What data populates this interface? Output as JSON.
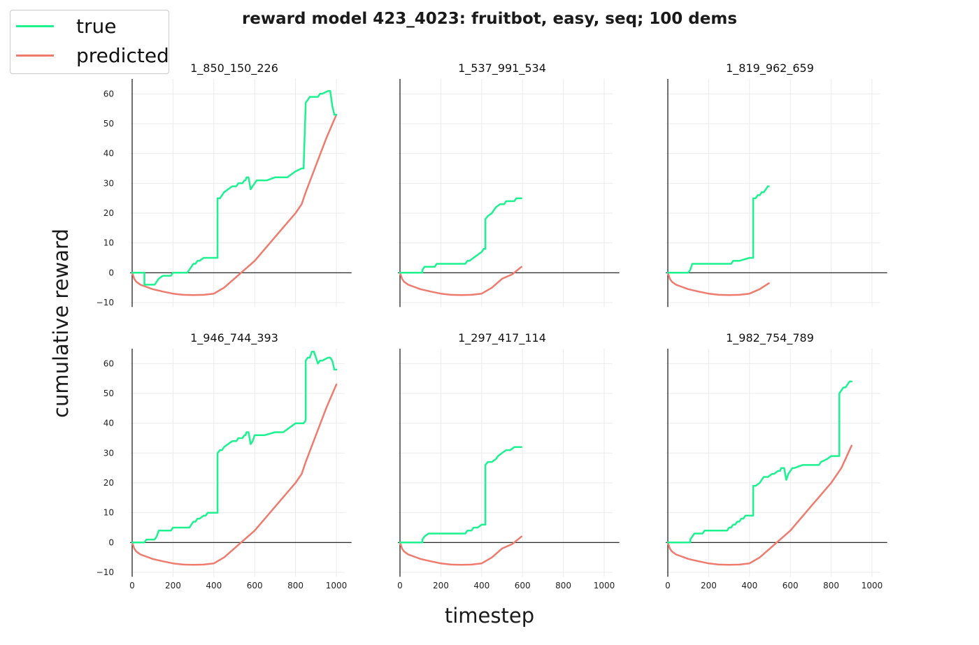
{
  "title": "reward model 423_4023: fruitbot, easy, seq; 100 dems",
  "xlabel": "timestep",
  "ylabel": "cumulative reward",
  "legend": [
    {
      "label": "true",
      "color": "#1cf28f"
    },
    {
      "label": "predicted",
      "color": "#ef7b6e"
    }
  ],
  "chart_data": {
    "type": "line",
    "xlim": [
      0,
      1000
    ],
    "ylim": [
      -10,
      65
    ],
    "xticks": [
      0,
      200,
      400,
      600,
      800,
      1000
    ],
    "yticks": [
      -10,
      0,
      10,
      20,
      30,
      40,
      50,
      60
    ],
    "grid": true,
    "legend_position": "upper-left",
    "panels": [
      {
        "title": "1_850_150_226",
        "series": [
          {
            "name": "true",
            "x": [
              0,
              60,
              60,
              110,
              130,
              150,
              190,
              200,
              270,
              280,
              290,
              300,
              310,
              320,
              330,
              350,
              360,
              370,
              380,
              400,
              418,
              418,
              430,
              440,
              450,
              470,
              490,
              510,
              520,
              530,
              540,
              550,
              555,
              560,
              570,
              580,
              590,
              600,
              610,
              620,
              660,
              700,
              740,
              760,
              800,
              830,
              840,
              840,
              850,
              860,
              870,
              890,
              910,
              920,
              930,
              960,
              970,
              980,
              990,
              995,
              1000
            ],
            "y": [
              0,
              0,
              -4,
              -4,
              -2,
              -1,
              -1,
              0,
              0,
              1,
              2,
              3,
              3,
              4,
              4,
              5,
              5,
              5,
              5,
              5,
              5,
              25,
              25,
              26,
              27,
              28,
              29,
              29,
              30,
              30,
              30,
              31,
              31,
              32,
              32,
              28,
              29,
              30,
              31,
              31,
              31,
              32,
              32,
              32,
              34,
              35,
              35,
              36,
              57,
              58,
              59,
              59,
              59,
              60,
              60,
              61,
              61,
              56,
              53,
              53,
              53
            ]
          },
          {
            "name": "predicted",
            "x": [
              0,
              10,
              20,
              40,
              60,
              100,
              150,
              200,
              250,
              300,
              350,
              400,
              450,
              500,
              550,
              600,
              650,
              700,
              750,
              800,
              830,
              850,
              900,
              950,
              1000
            ],
            "y": [
              0,
              -2,
              -3,
              -4,
              -4.5,
              -5.5,
              -6.3,
              -7,
              -7.4,
              -7.5,
              -7.4,
              -7,
              -5,
              -2,
              1,
              4,
              8,
              12,
              16,
              20,
              23,
              27,
              36,
              45,
              53
            ]
          }
        ]
      },
      {
        "title": "1_537_991_534",
        "series": [
          {
            "name": "true",
            "x": [
              0,
              110,
              110,
              120,
              140,
              170,
              180,
              250,
              300,
              320,
              330,
              340,
              360,
              380,
              400,
              410,
              418,
              418,
              430,
              450,
              460,
              470,
              490,
              510,
              520,
              540,
              560,
              570,
              580,
              590,
              595
            ],
            "y": [
              0,
              0,
              1,
              2,
              2,
              2,
              3,
              3,
              3,
              3,
              4,
              4,
              5,
              6,
              7,
              8,
              8,
              18,
              19,
              20,
              21,
              22,
              23,
              23,
              24,
              24,
              24,
              25,
              25,
              25,
              25
            ]
          },
          {
            "name": "predicted",
            "x": [
              0,
              10,
              20,
              40,
              60,
              100,
              150,
              200,
              250,
              300,
              350,
              400,
              450,
              500,
              550,
              595
            ],
            "y": [
              0,
              -2,
              -3,
              -4,
              -4.5,
              -5.5,
              -6.3,
              -7,
              -7.4,
              -7.5,
              -7.4,
              -7,
              -5,
              -2,
              -0.5,
              2
            ]
          }
        ]
      },
      {
        "title": "1_819_962_659",
        "series": [
          {
            "name": "true",
            "x": [
              0,
              100,
              110,
              120,
              160,
              250,
              300,
              310,
              320,
              350,
              400,
              418,
              418,
              430,
              440,
              450,
              460,
              470,
              480,
              490,
              495
            ],
            "y": [
              0,
              0,
              1,
              3,
              3,
              3,
              3,
              3,
              4,
              4,
              5,
              5,
              25,
              25,
              26,
              26,
              27,
              27,
              28,
              29,
              29
            ]
          },
          {
            "name": "predicted",
            "x": [
              0,
              10,
              20,
              40,
              60,
              100,
              150,
              200,
              250,
              300,
              350,
              400,
              450,
              495
            ],
            "y": [
              0,
              -2,
              -3,
              -4,
              -4.5,
              -5.5,
              -6.3,
              -7,
              -7.4,
              -7.5,
              -7.4,
              -7,
              -5.5,
              -3.5
            ]
          }
        ]
      },
      {
        "title": "1_946_744_393",
        "series": [
          {
            "name": "true",
            "x": [
              0,
              60,
              70,
              110,
              120,
              130,
              190,
              200,
              280,
              290,
              300,
              310,
              320,
              330,
              350,
              360,
              370,
              380,
              390,
              400,
              418,
              418,
              430,
              440,
              450,
              470,
              490,
              510,
              520,
              540,
              550,
              555,
              560,
              570,
              580,
              590,
              600,
              650,
              700,
              740,
              760,
              800,
              840,
              850,
              850,
              860,
              870,
              880,
              890,
              910,
              920,
              930,
              960,
              970,
              980,
              990,
              1000
            ],
            "y": [
              0,
              0,
              1,
              1,
              2,
              4,
              4,
              5,
              5,
              6,
              7,
              7,
              8,
              8,
              9,
              9,
              10,
              10,
              10,
              10,
              10,
              30,
              31,
              31,
              32,
              33,
              34,
              34,
              35,
              35,
              36,
              36,
              37,
              37,
              33,
              34,
              36,
              36,
              37,
              37,
              38,
              40,
              40,
              41,
              61,
              62,
              62,
              64,
              64,
              60,
              61,
              61,
              62,
              62,
              61,
              58,
              58
            ]
          },
          {
            "name": "predicted",
            "x": [
              0,
              10,
              20,
              40,
              60,
              100,
              150,
              200,
              250,
              300,
              350,
              400,
              450,
              500,
              550,
              600,
              650,
              700,
              750,
              800,
              830,
              850,
              900,
              950,
              1000
            ],
            "y": [
              0,
              -2,
              -3,
              -4,
              -4.5,
              -5.5,
              -6.3,
              -7,
              -7.4,
              -7.5,
              -7.4,
              -7,
              -5,
              -2,
              1,
              4,
              8,
              12,
              16,
              20,
              23,
              27,
              36,
              45,
              53
            ]
          }
        ]
      },
      {
        "title": "1_297_417_114",
        "series": [
          {
            "name": "true",
            "x": [
              0,
              110,
              110,
              120,
              140,
              250,
              300,
              320,
              330,
              350,
              360,
              380,
              400,
              418,
              418,
              430,
              450,
              470,
              480,
              500,
              520,
              540,
              560,
              580,
              595
            ],
            "y": [
              0,
              0,
              1,
              2,
              3,
              3,
              3,
              3,
              4,
              4,
              5,
              5,
              6,
              6,
              26,
              27,
              27,
              28,
              29,
              30,
              31,
              31,
              32,
              32,
              32
            ]
          },
          {
            "name": "predicted",
            "x": [
              0,
              10,
              20,
              40,
              60,
              100,
              150,
              200,
              250,
              300,
              350,
              400,
              450,
              500,
              550,
              595
            ],
            "y": [
              0,
              -2,
              -3,
              -4,
              -4.5,
              -5.5,
              -6.3,
              -7,
              -7.4,
              -7.5,
              -7.4,
              -7,
              -5,
              -2,
              -0.5,
              2
            ]
          }
        ]
      },
      {
        "title": "1_982_754_789",
        "series": [
          {
            "name": "true",
            "x": [
              0,
              110,
              110,
              120,
              130,
              170,
              180,
              230,
              250,
              290,
              300,
              310,
              320,
              330,
              340,
              350,
              360,
              370,
              380,
              400,
              418,
              418,
              430,
              450,
              460,
              470,
              490,
              510,
              520,
              540,
              550,
              555,
              560,
              570,
              580,
              590,
              600,
              610,
              620,
              660,
              700,
              740,
              750,
              780,
              800,
              830,
              840,
              840,
              850,
              860,
              870,
              880,
              890,
              900
            ],
            "y": [
              0,
              0,
              1,
              2,
              3,
              3,
              4,
              4,
              4,
              4,
              5,
              5,
              6,
              6,
              7,
              7,
              8,
              8,
              9,
              9,
              9,
              19,
              19,
              20,
              21,
              22,
              22,
              23,
              23,
              24,
              24,
              25,
              25,
              25,
              21,
              23,
              24,
              25,
              25,
              26,
              26,
              26,
              27,
              28,
              29,
              29,
              29,
              50,
              51,
              52,
              52,
              53,
              54,
              54
            ]
          },
          {
            "name": "predicted",
            "x": [
              0,
              10,
              20,
              40,
              60,
              100,
              150,
              200,
              250,
              300,
              350,
              400,
              450,
              500,
              550,
              600,
              650,
              700,
              750,
              800,
              830,
              850,
              900
            ],
            "y": [
              0,
              -2,
              -3,
              -4,
              -4.5,
              -5.5,
              -6.3,
              -7,
              -7.4,
              -7.5,
              -7.4,
              -7,
              -5,
              -2,
              1,
              4,
              8,
              12,
              16,
              20,
              23,
              25,
              32.5
            ]
          }
        ]
      }
    ]
  }
}
